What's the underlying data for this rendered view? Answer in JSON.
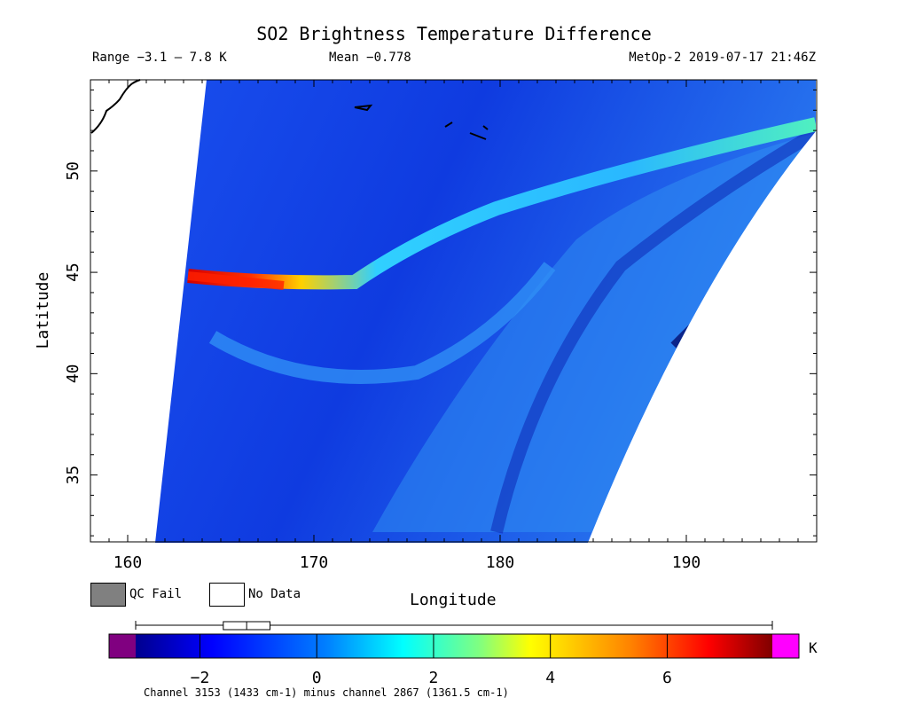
{
  "title": "SO2 Brightness Temperature Difference",
  "header": {
    "range": "Range −3.1 – 7.8 K",
    "mean": "Mean −0.778",
    "satellite": "MetOp-2 2019-07-17 21:46Z"
  },
  "map": {
    "xlabel": "Longitude",
    "ylabel": "Latitude",
    "lon_range": [
      158,
      197
    ],
    "lat_range": [
      31.7,
      54.5
    ],
    "x_ticks": [
      160,
      170,
      180,
      190
    ],
    "y_ticks": [
      35,
      40,
      45,
      50
    ],
    "features": "Sulfur dioxide plume extending east from ~163E 44.5N to ~197E 52N"
  },
  "legend": {
    "qc_fail": "QC Fail",
    "no_data": "No Data",
    "qc_fail_color": "#808080",
    "no_data_color": "#ffffff"
  },
  "colorbar": {
    "unit": "K",
    "range": [
      -3.1,
      7.8
    ],
    "ticks": [
      -2,
      0,
      2,
      4,
      6
    ],
    "tick_labels": [
      "−2",
      "0",
      "2",
      "4",
      "6"
    ],
    "under_color": "#800080",
    "over_color": "#ff00ff",
    "box": {
      "whisker_low": -3.1,
      "q1": -1.6,
      "median": -1.2,
      "q3": -0.8,
      "whisker_high": 7.8
    }
  },
  "footnote": "Channel 3153 (1433 cm-1) minus channel 2867 (1361.5 cm-1)"
}
